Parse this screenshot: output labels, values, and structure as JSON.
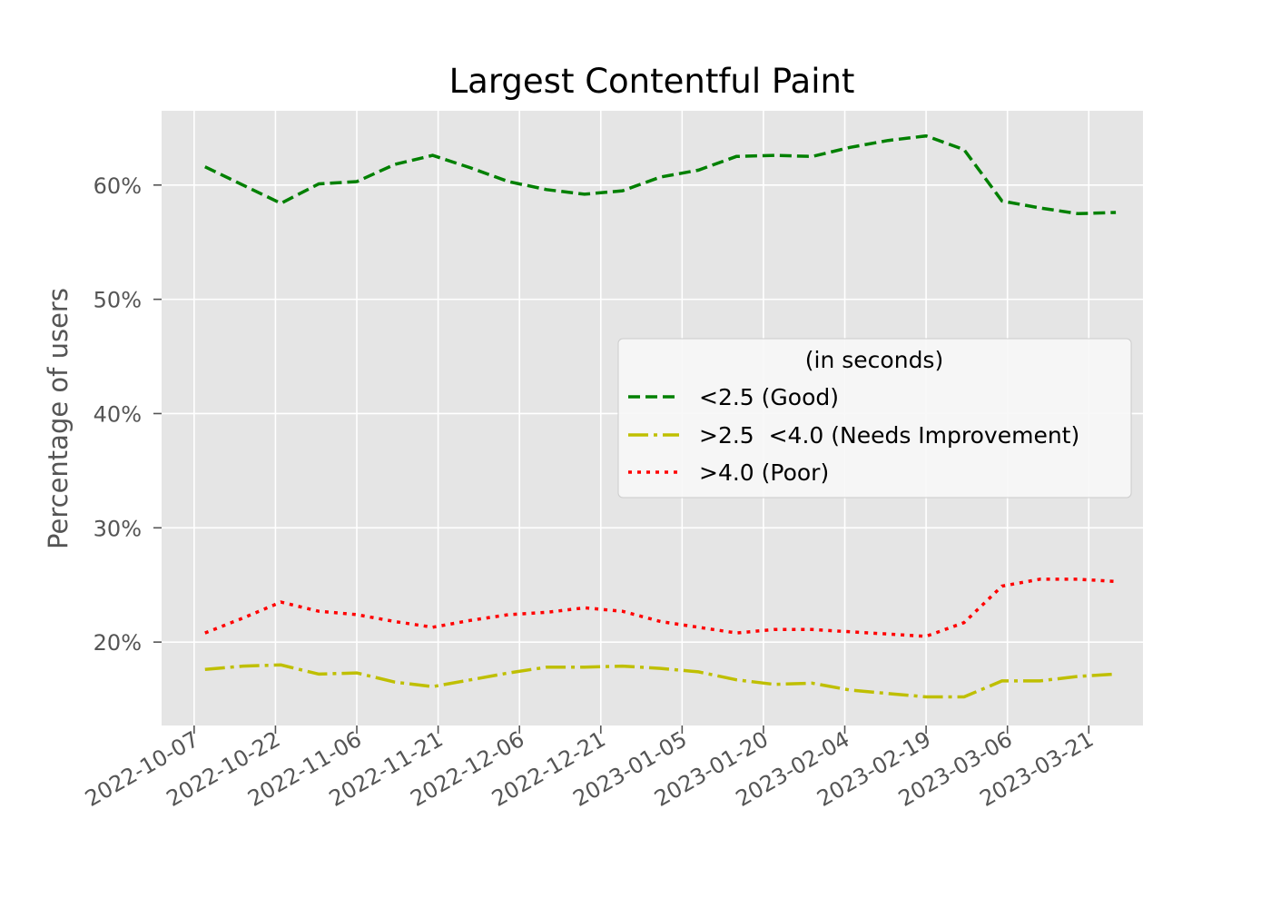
{
  "chart_data": {
    "type": "line",
    "title": "Largest Contentful Paint",
    "xlabel": "",
    "ylabel": "Percentage of users",
    "x_tick_labels": [
      "2022-10-07",
      "2022-10-22",
      "2022-11-06",
      "2022-11-21",
      "2022-12-06",
      "2022-12-21",
      "2023-01-05",
      "2023-01-20",
      "2023-02-04",
      "2023-02-19",
      "2023-03-06",
      "2023-03-21"
    ],
    "y_tick_labels": [
      "20%",
      "30%",
      "40%",
      "50%",
      "60%"
    ],
    "y_ticks": [
      20,
      30,
      40,
      50,
      60
    ],
    "xlim": [
      "2022-10-01",
      "2023-03-31"
    ],
    "ylim": [
      12.7,
      66.5
    ],
    "grid": true,
    "legend": {
      "title": "(in seconds)",
      "placement": "center-right"
    },
    "x": [
      "2022-10-09",
      "2022-10-16",
      "2022-10-23",
      "2022-10-30",
      "2022-11-06",
      "2022-11-13",
      "2022-11-20",
      "2022-11-27",
      "2022-12-04",
      "2022-12-11",
      "2022-12-18",
      "2022-12-25",
      "2023-01-01",
      "2023-01-08",
      "2023-01-15",
      "2023-01-22",
      "2023-01-29",
      "2023-02-05",
      "2023-02-12",
      "2023-02-19",
      "2023-02-26",
      "2023-03-05",
      "2023-03-12",
      "2023-03-19",
      "2023-03-26"
    ],
    "series": [
      {
        "name": "<2.5 (Good)",
        "color": "#008000",
        "style": "dashed",
        "values": [
          61.6,
          60.0,
          58.4,
          60.1,
          60.3,
          61.8,
          62.6,
          61.5,
          60.3,
          59.6,
          59.2,
          59.5,
          60.7,
          61.3,
          62.5,
          62.6,
          62.5,
          63.3,
          63.9,
          64.3,
          63.1,
          58.6,
          58.0,
          57.5,
          57.6
        ]
      },
      {
        "name": ">2.5  <4.0 (Needs Improvement)",
        "color": "#bfbf00",
        "style": "dashdot",
        "values": [
          17.6,
          17.9,
          18.0,
          17.2,
          17.3,
          16.5,
          16.1,
          16.7,
          17.3,
          17.8,
          17.8,
          17.9,
          17.7,
          17.4,
          16.7,
          16.3,
          16.4,
          15.8,
          15.5,
          15.2,
          15.2,
          16.6,
          16.6,
          17.0,
          17.2
        ]
      },
      {
        "name": ">4.0 (Poor)",
        "color": "#ff0000",
        "style": "dotted",
        "values": [
          20.8,
          22.1,
          23.5,
          22.7,
          22.4,
          21.8,
          21.3,
          21.9,
          22.4,
          22.6,
          23.0,
          22.7,
          21.8,
          21.3,
          20.8,
          21.1,
          21.1,
          20.9,
          20.7,
          20.5,
          21.7,
          24.9,
          25.5,
          25.5,
          25.3
        ]
      }
    ]
  },
  "colors": {
    "plot_background": "#e5e5e5",
    "grid": "#ffffff",
    "tick_text": "#555555"
  }
}
